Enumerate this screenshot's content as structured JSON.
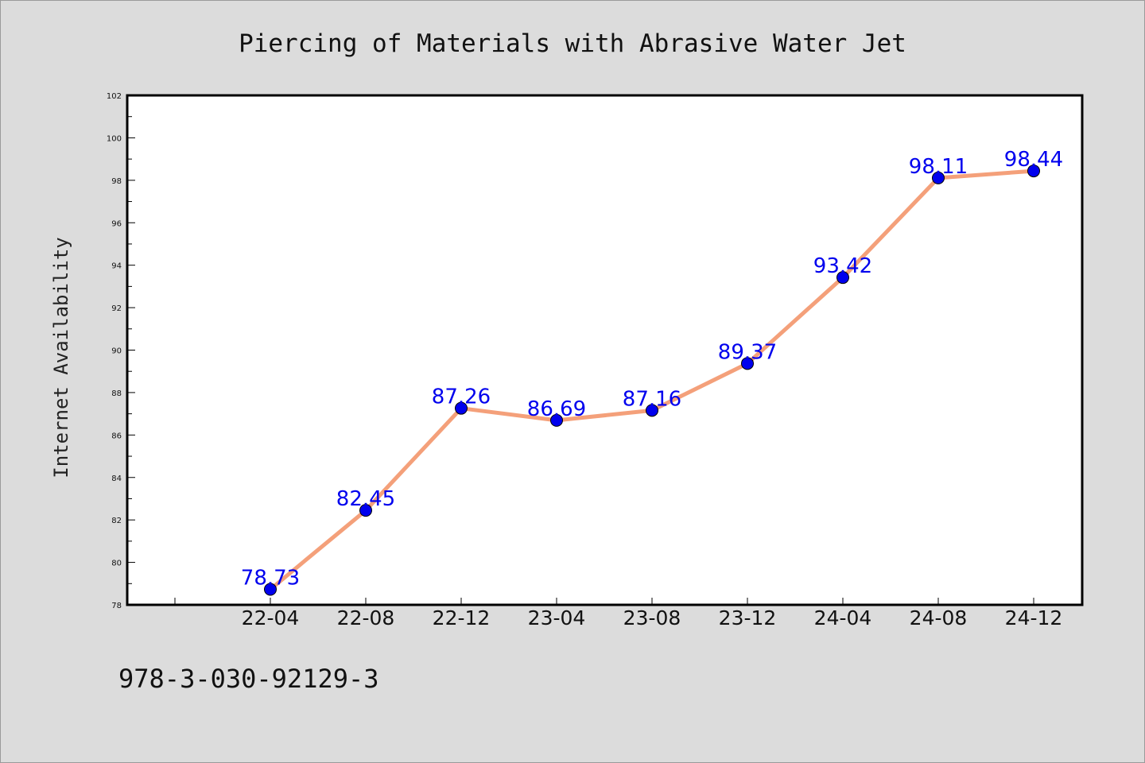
{
  "chart_data": {
    "type": "line",
    "title": "Piercing of Materials with Abrasive Water Jet",
    "xlabel": "",
    "ylabel": "Internet Availability",
    "categories": [
      "22-04",
      "22-08",
      "22-12",
      "23-04",
      "23-08",
      "23-12",
      "24-04",
      "24-08",
      "24-12"
    ],
    "series": [
      {
        "values": [
          78.73,
          82.45,
          87.26,
          86.69,
          87.16,
          89.37,
          93.42,
          98.11,
          98.44
        ],
        "value_labels": [
          "78.73",
          "82.45",
          "87.26",
          "86.69",
          "87.16",
          "89.37",
          "93.42",
          "98.11",
          "98.44"
        ],
        "line_color": "#f4a07a",
        "marker_color": "#0000ee",
        "label_color": "#0000ee"
      }
    ],
    "ylim": [
      78,
      102
    ],
    "yticks": [
      "78",
      "80",
      "82",
      "84",
      "86",
      "88",
      "90",
      "92",
      "94",
      "96",
      "98",
      "100",
      "102"
    ],
    "grid": false,
    "legend": "none"
  },
  "footnote": "978-3-030-92129-3",
  "colors": {
    "background": "#dcdcdc",
    "plot_area": "#ffffff"
  }
}
